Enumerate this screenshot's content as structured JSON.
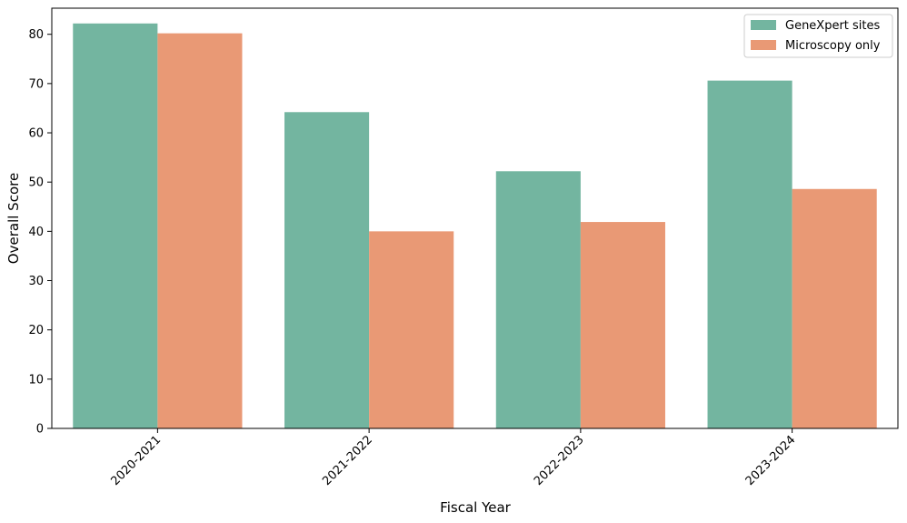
{
  "chart_data": {
    "type": "bar",
    "title": "",
    "xlabel": "Fiscal Year",
    "ylabel": "Overall Score",
    "categories": [
      "2020-2021",
      "2021-2022",
      "2022-2023",
      "2023-2024"
    ],
    "series": [
      {
        "name": "GeneXpert sites",
        "color": "#73b5a0",
        "values": [
          82.2,
          64.2,
          52.2,
          70.6
        ]
      },
      {
        "name": "Microscopy only",
        "color": "#e99975",
        "values": [
          80.2,
          40.0,
          41.9,
          48.6
        ]
      }
    ],
    "ylim": [
      0,
      85.3
    ],
    "yticks": [
      "0",
      "10",
      "20",
      "30",
      "40",
      "50",
      "60",
      "70",
      "80"
    ],
    "grid": false,
    "legend_position": "top-right",
    "xtick_rotation_deg": 45
  }
}
